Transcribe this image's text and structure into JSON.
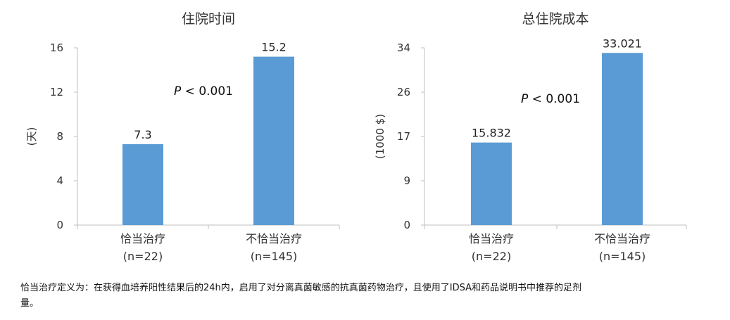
{
  "chart_data": [
    {
      "type": "bar",
      "title": "住院时间",
      "ylabel": "(天)",
      "xlabel": "",
      "ylim": [
        0,
        16
      ],
      "yticks": [
        "0",
        "4",
        "8",
        "12",
        "16"
      ],
      "ytick_values": [
        0,
        4,
        8,
        12,
        16
      ],
      "categories": [
        "恰当治疗",
        "不恰当治疗"
      ],
      "category_sublabels": [
        "(n=22)",
        "(n=145)"
      ],
      "values": [
        7.3,
        15.2
      ],
      "value_labels": [
        "7.3",
        "15.2"
      ],
      "annotation_italic": "P",
      "annotation_rest": " < 0.001",
      "bar_color": "#5B9BD5",
      "grid": false
    },
    {
      "type": "bar",
      "title": "总住院成本",
      "ylabel": "(1000 $)",
      "xlabel": "",
      "ylim": [
        0,
        34
      ],
      "yticks": [
        "0",
        "9",
        "17",
        "26",
        "34"
      ],
      "ytick_values": [
        0,
        8.5,
        17,
        25.5,
        34
      ],
      "categories": [
        "恰当治疗",
        "不恰当治疗"
      ],
      "category_sublabels": [
        "(n=22)",
        "(n=145)"
      ],
      "values": [
        15.832,
        33.021
      ],
      "value_labels": [
        "15.832",
        "33.021"
      ],
      "annotation_italic": "P",
      "annotation_rest": " < 0.001",
      "bar_color": "#5B9BD5",
      "grid": false
    }
  ],
  "footnote": {
    "line1": "恰当治疗定义为：在获得血培养阳性结果后的24h内，启用了对分离真菌敏感的抗真菌药物治疗，且使用了IDSA和药品说明书中推荐的足剂",
    "line2": "量。"
  }
}
